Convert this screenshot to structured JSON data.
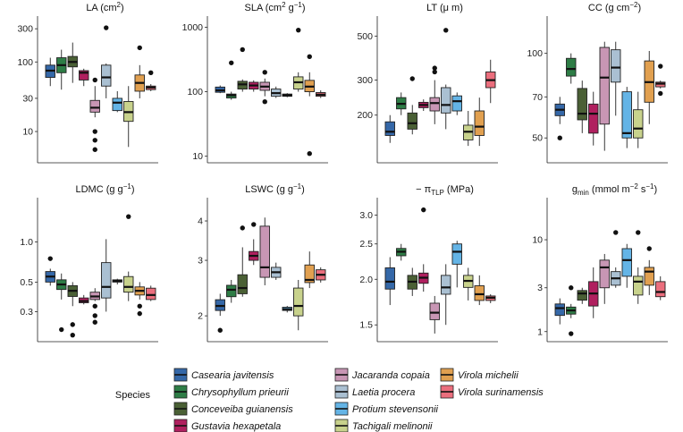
{
  "legend": {
    "title": "Species",
    "entries": [
      {
        "name": "Casearia javitensis",
        "color": "#3568a8"
      },
      {
        "name": "Chrysophyllum prieurii",
        "color": "#2e7d46"
      },
      {
        "name": "Conceveiba guianensis",
        "color": "#4a6035"
      },
      {
        "name": "Gustavia hexapetala",
        "color": "#b0205f"
      },
      {
        "name": "Jacaranda copaia",
        "color": "#c896b4"
      },
      {
        "name": "Laetia procera",
        "color": "#aac0d2"
      },
      {
        "name": "Protium stevensonii",
        "color": "#64b4e6"
      },
      {
        "name": "Tachigali melinonii",
        "color": "#c8d28c"
      },
      {
        "name": "Virola michelii",
        "color": "#e1a050"
      },
      {
        "name": "Virola surinamensis",
        "color": "#eb6e7d"
      }
    ]
  },
  "chart_data": [
    {
      "type": "boxplot",
      "title_parts": [
        "LA (cm",
        "2",
        ")"
      ],
      "scale": "log",
      "ylim": [
        4,
        360
      ],
      "ticks": [
        10,
        30,
        100,
        300
      ],
      "tick_labels": [
        "10",
        "30",
        "100",
        "300"
      ],
      "boxes": [
        {
          "whislo": 45,
          "q1": 60,
          "med": 75,
          "q3": 90,
          "whishi": 115,
          "fliers": []
        },
        {
          "whislo": 40,
          "q1": 70,
          "med": 90,
          "q3": 115,
          "whishi": 150,
          "fliers": []
        },
        {
          "whislo": 50,
          "q1": 85,
          "med": 100,
          "q3": 120,
          "whishi": 190,
          "fliers": []
        },
        {
          "whislo": 45,
          "q1": 55,
          "med": 70,
          "q3": 75,
          "whishi": 80,
          "fliers": []
        },
        {
          "whislo": 16,
          "q1": 19,
          "med": 22,
          "q3": 28,
          "whishi": 45,
          "fliers": [
            5.5,
            7.5,
            10,
            55
          ]
        },
        {
          "whislo": 30,
          "q1": 45,
          "med": 60,
          "q3": 90,
          "whishi": 95,
          "fliers": [
            310
          ]
        },
        {
          "whislo": 19,
          "q1": 20,
          "med": 26,
          "q3": 30,
          "whishi": 38,
          "fliers": []
        },
        {
          "whislo": 6,
          "q1": 14,
          "med": 19,
          "q3": 27,
          "whishi": 45,
          "fliers": []
        },
        {
          "whislo": 30,
          "q1": 38,
          "med": 50,
          "q3": 65,
          "whishi": 90,
          "fliers": [
            160
          ]
        },
        {
          "whislo": 38,
          "q1": 40,
          "med": 43,
          "q3": 45,
          "whishi": 48,
          "fliers": [
            70
          ]
        }
      ]
    },
    {
      "type": "boxplot",
      "title_parts": [
        "SLA (cm",
        "2",
        " g",
        "−1",
        ")"
      ],
      "scale": "log",
      "ylim": [
        9,
        1150
      ],
      "ticks": [
        10,
        100,
        1000
      ],
      "tick_labels": [
        "10",
        "100",
        "1000"
      ],
      "boxes": [
        {
          "whislo": 95,
          "q1": 98,
          "med": 105,
          "q3": 118,
          "whishi": 125,
          "fliers": []
        },
        {
          "whislo": 75,
          "q1": 80,
          "med": 88,
          "q3": 92,
          "whishi": 100,
          "fliers": [
            280
          ]
        },
        {
          "whislo": 100,
          "q1": 110,
          "med": 130,
          "q3": 145,
          "whishi": 155,
          "fliers": [
            450
          ]
        },
        {
          "whislo": 100,
          "q1": 110,
          "med": 125,
          "q3": 140,
          "whishi": 150,
          "fliers": []
        },
        {
          "whislo": 85,
          "q1": 105,
          "med": 120,
          "q3": 140,
          "whishi": 160,
          "fliers": [
            70,
            200
          ]
        },
        {
          "whislo": 80,
          "q1": 85,
          "med": 95,
          "q3": 110,
          "whishi": 120,
          "fliers": []
        },
        {
          "whislo": 82,
          "q1": 85,
          "med": 88,
          "q3": 92,
          "whishi": 95,
          "fliers": []
        },
        {
          "whislo": 100,
          "q1": 110,
          "med": 140,
          "q3": 170,
          "whishi": 200,
          "fliers": [
            900
          ]
        },
        {
          "whislo": 85,
          "q1": 100,
          "med": 120,
          "q3": 150,
          "whishi": 200,
          "fliers": [
            11,
            350
          ]
        },
        {
          "whislo": 80,
          "q1": 85,
          "med": 90,
          "q3": 97,
          "whishi": 105,
          "fliers": []
        }
      ]
    },
    {
      "type": "boxplot",
      "title_parts": [
        "LT (μ m)"
      ],
      "scale": "log",
      "ylim": [
        120,
        580
      ],
      "ticks": [
        200,
        300,
        500
      ],
      "tick_labels": [
        "200",
        "300",
        "500"
      ],
      "boxes": [
        {
          "whislo": 145,
          "q1": 158,
          "med": 165,
          "q3": 185,
          "whishi": 200,
          "fliers": []
        },
        {
          "whislo": 200,
          "q1": 215,
          "med": 228,
          "q3": 245,
          "whishi": 260,
          "fliers": []
        },
        {
          "whislo": 160,
          "q1": 170,
          "med": 182,
          "q3": 205,
          "whishi": 225,
          "fliers": [
            305
          ]
        },
        {
          "whislo": 210,
          "q1": 218,
          "med": 225,
          "q3": 232,
          "whishi": 240,
          "fliers": []
        },
        {
          "whislo": 180,
          "q1": 210,
          "med": 230,
          "q3": 245,
          "whishi": 300,
          "fliers": [
            330,
            345
          ]
        },
        {
          "whislo": 170,
          "q1": 205,
          "med": 225,
          "q3": 275,
          "whishi": 285,
          "fliers": [
            535
          ]
        },
        {
          "whislo": 200,
          "q1": 210,
          "med": 235,
          "q3": 250,
          "whishi": 260,
          "fliers": []
        },
        {
          "whislo": 140,
          "q1": 150,
          "med": 165,
          "q3": 178,
          "whishi": 210,
          "fliers": []
        },
        {
          "whislo": 140,
          "q1": 158,
          "med": 175,
          "q3": 210,
          "whishi": 245,
          "fliers": []
        },
        {
          "whislo": 230,
          "q1": 275,
          "med": 300,
          "q3": 330,
          "whishi": 380,
          "fliers": []
        }
      ]
    },
    {
      "type": "boxplot",
      "title_parts": [
        "CC (g cm",
        "−2",
        ")"
      ],
      "scale": "log",
      "ylim": [
        42,
        128
      ],
      "ticks": [
        50,
        70,
        100
      ],
      "tick_labels": [
        "50",
        "70",
        "100"
      ],
      "boxes": [
        {
          "whislo": 56,
          "q1": 60,
          "med": 63,
          "q3": 66,
          "whishi": 70,
          "fliers": [
            50
          ]
        },
        {
          "whislo": 78,
          "q1": 83,
          "med": 88,
          "q3": 96,
          "whishi": 100,
          "fliers": []
        },
        {
          "whislo": 52,
          "q1": 58,
          "med": 61,
          "q3": 75,
          "whishi": 80,
          "fliers": []
        },
        {
          "whislo": 47,
          "q1": 52,
          "med": 61,
          "q3": 66,
          "whishi": 73,
          "fliers": []
        },
        {
          "whislo": 45,
          "q1": 56,
          "med": 82,
          "q3": 105,
          "whishi": 110,
          "fliers": []
        },
        {
          "whislo": 60,
          "q1": 79,
          "med": 89,
          "q3": 103,
          "whishi": 110,
          "fliers": []
        },
        {
          "whislo": 46,
          "q1": 50,
          "med": 52,
          "q3": 73,
          "whishi": 76,
          "fliers": []
        },
        {
          "whislo": 46,
          "q1": 50,
          "med": 54,
          "q3": 63,
          "whishi": 73,
          "fliers": []
        },
        {
          "whislo": 56,
          "q1": 67,
          "med": 79,
          "q3": 94,
          "whishi": 102,
          "fliers": []
        },
        {
          "whislo": 75,
          "q1": 76,
          "med": 78,
          "q3": 79,
          "whishi": 80,
          "fliers": [
            72,
            90
          ]
        }
      ]
    },
    {
      "type": "boxplot",
      "title_parts": [
        "LDMC (g g",
        "−1",
        ")"
      ],
      "scale": "log",
      "ylim": [
        0.19,
        1.9
      ],
      "ticks": [
        0.3,
        0.5,
        1.0
      ],
      "tick_labels": [
        "0.3",
        "0.5",
        "1.0"
      ],
      "boxes": [
        {
          "whislo": 0.47,
          "q1": 0.5,
          "med": 0.55,
          "q3": 0.6,
          "whishi": 0.63,
          "fliers": [
            0.75
          ]
        },
        {
          "whislo": 0.37,
          "q1": 0.44,
          "med": 0.48,
          "q3": 0.52,
          "whishi": 0.58,
          "fliers": [
            0.22
          ]
        },
        {
          "whislo": 0.33,
          "q1": 0.39,
          "med": 0.43,
          "q3": 0.47,
          "whishi": 0.5,
          "fliers": [
            0.2,
            0.24
          ]
        },
        {
          "whislo": 0.34,
          "q1": 0.35,
          "med": 0.36,
          "q3": 0.38,
          "whishi": 0.4,
          "fliers": []
        },
        {
          "whislo": 0.36,
          "q1": 0.37,
          "med": 0.39,
          "q3": 0.42,
          "whishi": 0.45,
          "fliers": [
            0.25,
            0.28,
            0.33
          ]
        },
        {
          "whislo": 0.3,
          "q1": 0.38,
          "med": 0.46,
          "q3": 0.7,
          "whishi": 1.05,
          "fliers": []
        },
        {
          "whislo": 0.48,
          "q1": 0.5,
          "med": 0.51,
          "q3": 0.52,
          "whishi": 0.53,
          "fliers": []
        },
        {
          "whislo": 0.36,
          "q1": 0.42,
          "med": 0.46,
          "q3": 0.55,
          "whishi": 0.6,
          "fliers": [
            1.55
          ]
        },
        {
          "whislo": 0.37,
          "q1": 0.4,
          "med": 0.43,
          "q3": 0.46,
          "whishi": 0.5,
          "fliers": [
            0.29,
            0.33
          ]
        },
        {
          "whislo": 0.36,
          "q1": 0.37,
          "med": 0.4,
          "q3": 0.45,
          "whishi": 0.47,
          "fliers": []
        }
      ]
    },
    {
      "type": "boxplot",
      "title_parts": [
        "LSWC (g g",
        "−1",
        ")"
      ],
      "scale": "log",
      "ylim": [
        1.7,
        4.5
      ],
      "ticks": [
        2,
        3,
        4
      ],
      "tick_labels": [
        "2",
        "3",
        "4"
      ],
      "boxes": [
        {
          "whislo": 2.0,
          "q1": 2.08,
          "med": 2.15,
          "q3": 2.25,
          "whishi": 2.35,
          "fliers": [
            1.8
          ]
        },
        {
          "whislo": 2.2,
          "q1": 2.3,
          "med": 2.42,
          "q3": 2.5,
          "whishi": 2.6,
          "fliers": []
        },
        {
          "whislo": 2.3,
          "q1": 2.35,
          "med": 2.45,
          "q3": 2.7,
          "whishi": 3.3,
          "fliers": [
            3.8
          ]
        },
        {
          "whislo": 2.9,
          "q1": 3.0,
          "med": 3.1,
          "q3": 3.2,
          "whishi": 3.5,
          "fliers": [
            3.9
          ]
        },
        {
          "whislo": 2.5,
          "q1": 2.65,
          "med": 2.85,
          "q3": 3.85,
          "whishi": 4.1,
          "fliers": []
        },
        {
          "whislo": 2.6,
          "q1": 2.65,
          "med": 2.75,
          "q3": 2.85,
          "whishi": 2.95,
          "fliers": []
        },
        {
          "whislo": 2.05,
          "q1": 2.08,
          "med": 2.1,
          "q3": 2.13,
          "whishi": 2.15,
          "fliers": []
        },
        {
          "whislo": 1.8,
          "q1": 2.0,
          "med": 2.15,
          "q3": 2.45,
          "whishi": 2.6,
          "fliers": []
        },
        {
          "whislo": 2.45,
          "q1": 2.55,
          "med": 2.6,
          "q3": 2.9,
          "whishi": 3.2,
          "fliers": []
        },
        {
          "whislo": 2.55,
          "q1": 2.6,
          "med": 2.7,
          "q3": 2.8,
          "whishi": 2.85,
          "fliers": []
        }
      ]
    },
    {
      "type": "boxplot",
      "title_parts": [
        "− π",
        "TLP",
        " (MPa)"
      ],
      "scale": "log",
      "ylim": [
        1.38,
        3.2
      ],
      "ticks": [
        1.5,
        2.0,
        2.5,
        3.0
      ],
      "tick_labels": [
        "1.5",
        "2.0",
        "2.5",
        "3.0"
      ],
      "boxes": [
        {
          "whislo": 1.7,
          "q1": 1.88,
          "med": 1.97,
          "q3": 2.15,
          "whishi": 2.3,
          "fliers": []
        },
        {
          "whislo": 2.25,
          "q1": 2.32,
          "med": 2.38,
          "q3": 2.43,
          "whishi": 2.5,
          "fliers": []
        },
        {
          "whislo": 1.8,
          "q1": 1.88,
          "med": 1.97,
          "q3": 2.05,
          "whishi": 2.15,
          "fliers": []
        },
        {
          "whislo": 1.85,
          "q1": 1.95,
          "med": 2.02,
          "q3": 2.08,
          "whishi": 2.2,
          "fliers": [
            3.1
          ]
        },
        {
          "whislo": 1.42,
          "q1": 1.55,
          "med": 1.62,
          "q3": 1.72,
          "whishi": 1.8,
          "fliers": []
        },
        {
          "whislo": 1.5,
          "q1": 1.82,
          "med": 1.9,
          "q3": 2.05,
          "whishi": 2.2,
          "fliers": []
        },
        {
          "whislo": 1.9,
          "q1": 2.2,
          "med": 2.38,
          "q3": 2.5,
          "whishi": 2.55,
          "fliers": []
        },
        {
          "whislo": 1.75,
          "q1": 1.9,
          "med": 1.98,
          "q3": 2.05,
          "whishi": 2.15,
          "fliers": []
        },
        {
          "whislo": 1.7,
          "q1": 1.75,
          "med": 1.82,
          "q3": 1.92,
          "whishi": 2.05,
          "fliers": []
        },
        {
          "whislo": 1.72,
          "q1": 1.75,
          "med": 1.78,
          "q3": 1.8,
          "whishi": 1.82,
          "fliers": []
        }
      ]
    },
    {
      "type": "boxplot",
      "title_parts": [
        "g",
        "min",
        " (mmol m",
        "−2",
        " s",
        "−1",
        ")"
      ],
      "scale": "log",
      "ylim": [
        0.85,
        24
      ],
      "ticks": [
        1,
        3,
        10
      ],
      "tick_labels": [
        "1",
        "3",
        "10"
      ],
      "boxes": [
        {
          "whislo": 1.2,
          "q1": 1.5,
          "med": 1.8,
          "q3": 2.0,
          "whishi": 2.3,
          "fliers": []
        },
        {
          "whislo": 1.4,
          "q1": 1.55,
          "med": 1.7,
          "q3": 1.85,
          "whishi": 2.0,
          "fliers": [
            0.95,
            3.0
          ]
        },
        {
          "whislo": 2.0,
          "q1": 2.2,
          "med": 2.6,
          "q3": 2.8,
          "whishi": 3.0,
          "fliers": []
        },
        {
          "whislo": 1.4,
          "q1": 1.9,
          "med": 2.6,
          "q3": 3.5,
          "whishi": 5.0,
          "fliers": []
        },
        {
          "whislo": 2.0,
          "q1": 3.0,
          "med": 5.0,
          "q3": 6.0,
          "whishi": 7.0,
          "fliers": []
        },
        {
          "whislo": 3.0,
          "q1": 3.2,
          "med": 3.8,
          "q3": 4.5,
          "whishi": 5.0,
          "fliers": [
            12
          ]
        },
        {
          "whislo": 3.0,
          "q1": 4.0,
          "med": 6.0,
          "q3": 8.0,
          "whishi": 9.0,
          "fliers": []
        },
        {
          "whislo": 2.0,
          "q1": 2.5,
          "med": 3.5,
          "q3": 4.0,
          "whishi": 5.0,
          "fliers": [
            12
          ]
        },
        {
          "whislo": 2.5,
          "q1": 3.2,
          "med": 4.5,
          "q3": 5.0,
          "whishi": 6.0,
          "fliers": [
            8
          ]
        },
        {
          "whislo": 2.2,
          "q1": 2.4,
          "med": 2.7,
          "q3": 3.5,
          "whishi": 4.0,
          "fliers": []
        }
      ]
    }
  ]
}
